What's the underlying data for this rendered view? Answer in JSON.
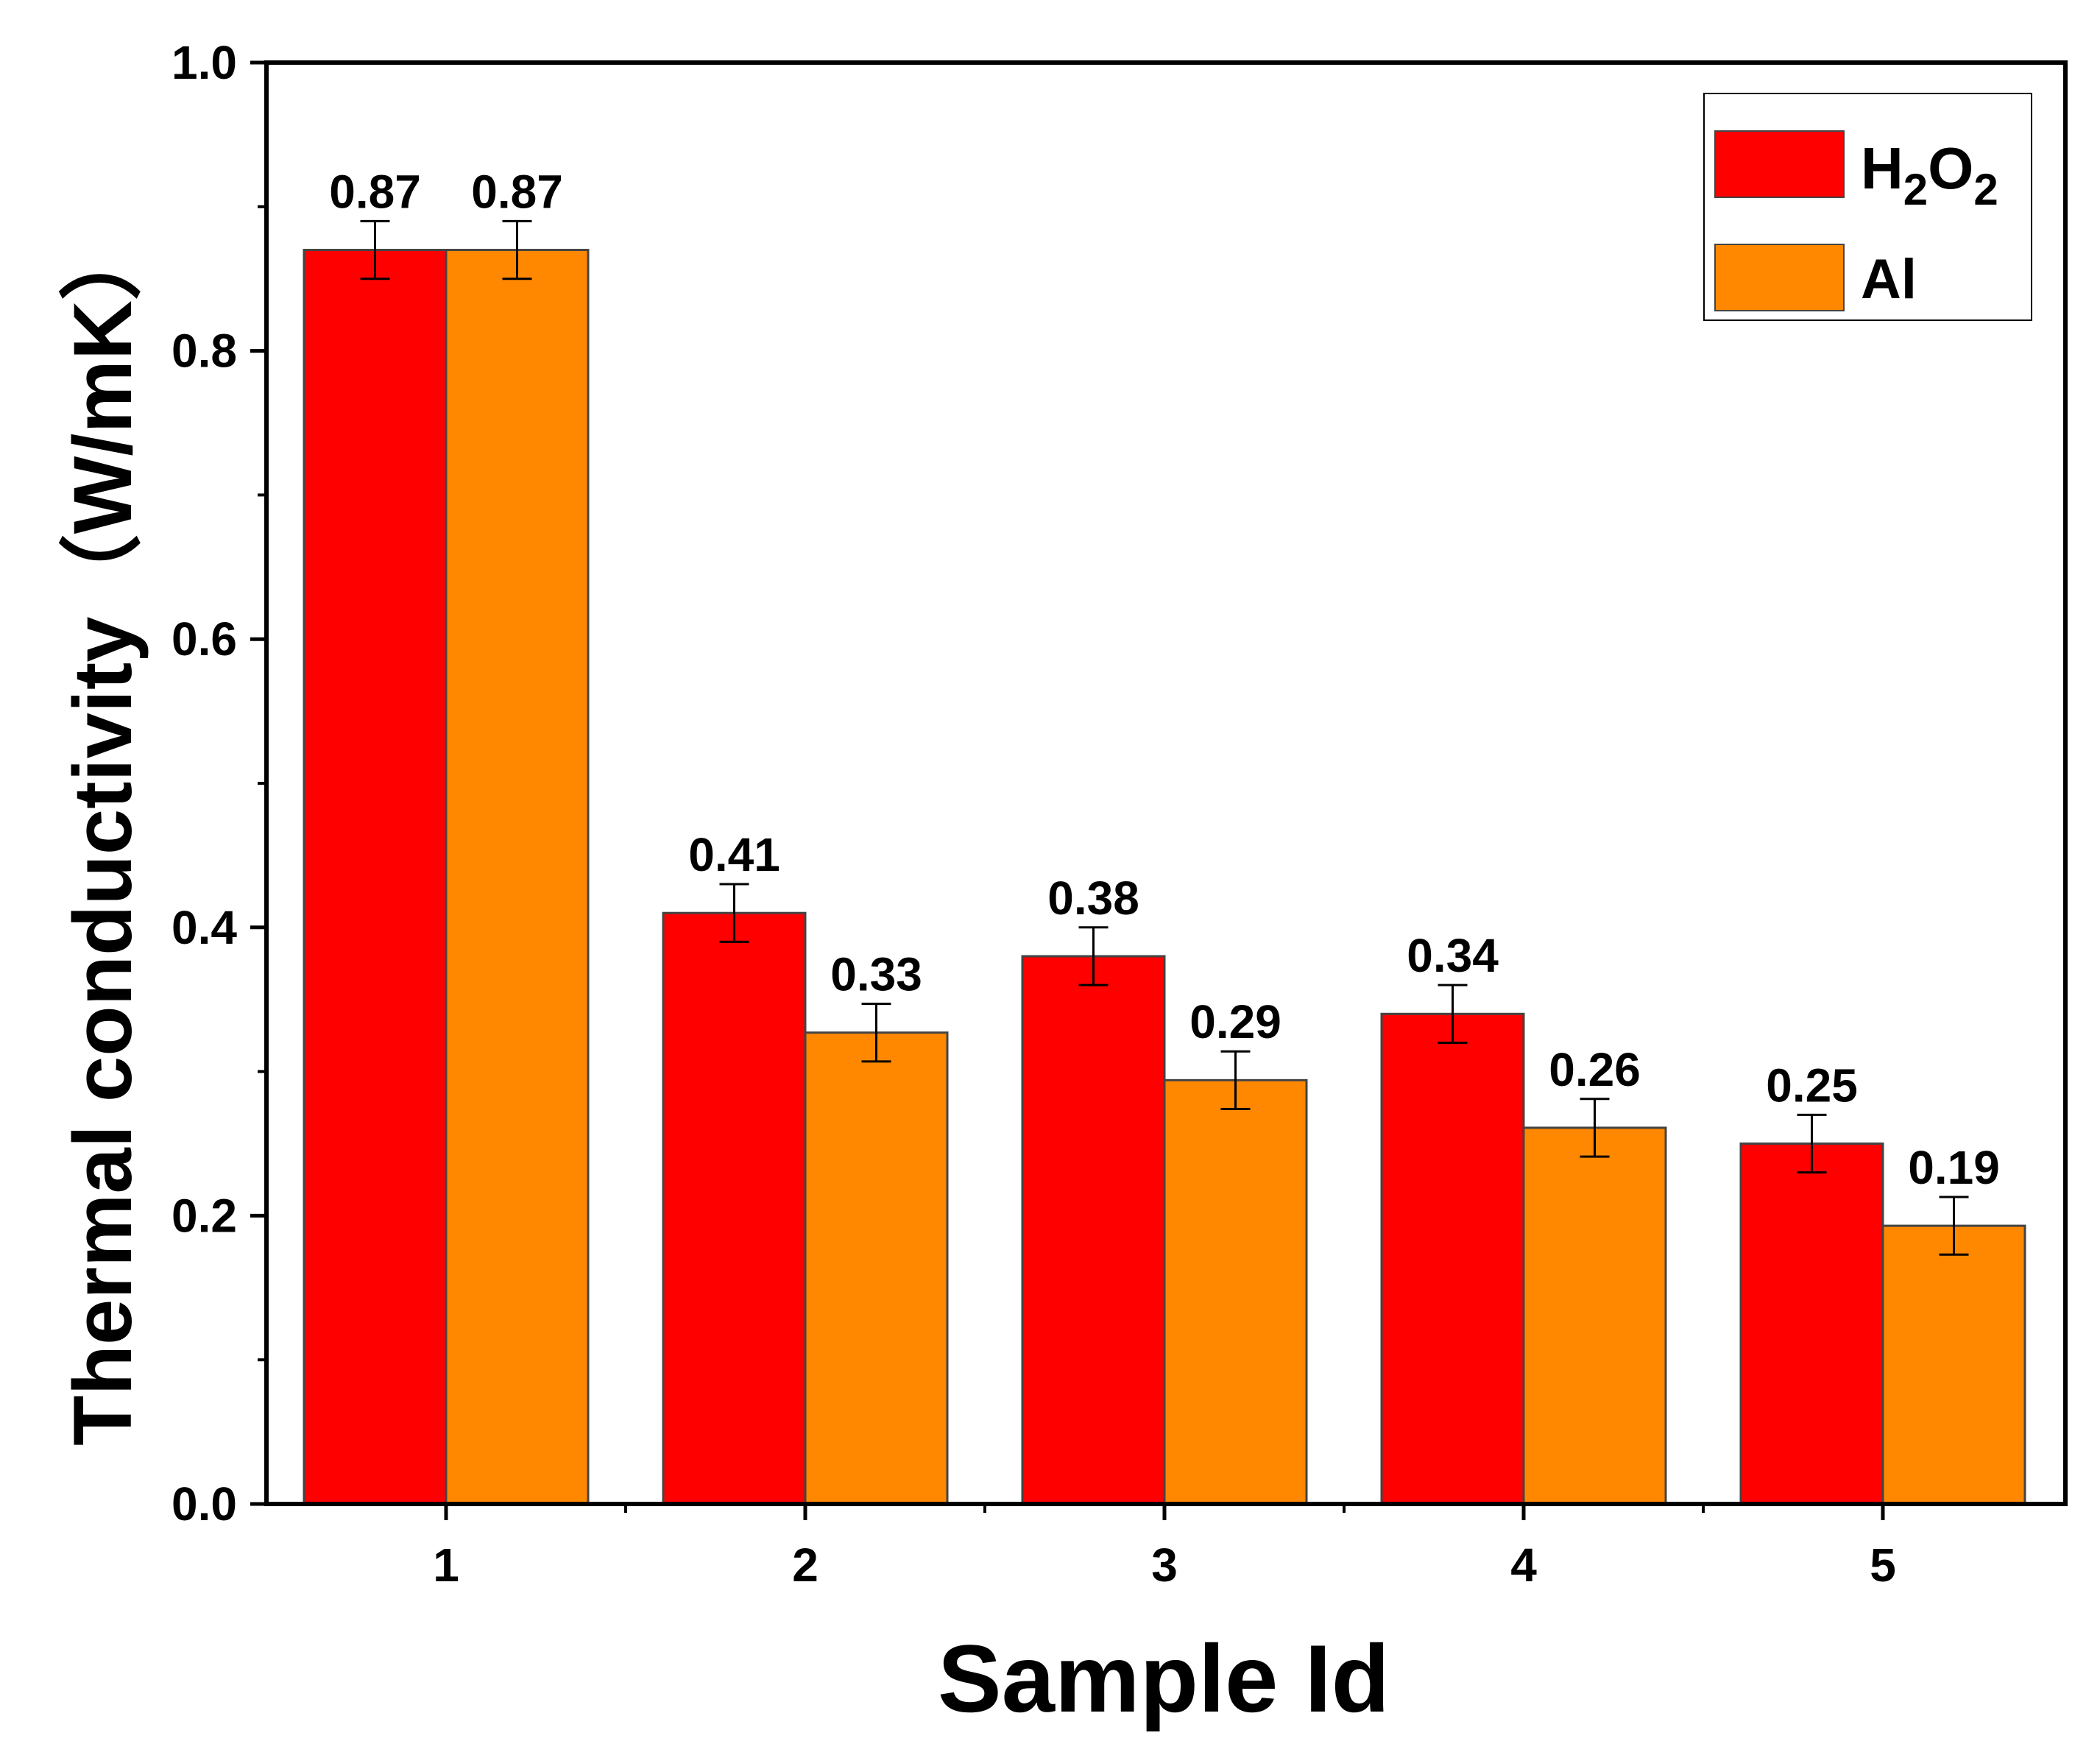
{
  "chart_data": {
    "type": "bar",
    "title": "",
    "xlabel": "Sample Id",
    "ylabel": "Thermal conductivity（W/mK）",
    "categories": [
      "1",
      "2",
      "3",
      "4",
      "5"
    ],
    "series": [
      {
        "name": "H2O2",
        "legend_label": {
          "main1": "H",
          "sub1": "2",
          "main2": "O",
          "sub2": "2"
        },
        "color": "#ff0000",
        "values": [
          0.87,
          0.41,
          0.38,
          0.34,
          0.25
        ],
        "labels": [
          "0.87",
          "0.41",
          "0.38",
          "0.34",
          "0.25"
        ],
        "errors": [
          0.02,
          0.02,
          0.02,
          0.02,
          0.02
        ]
      },
      {
        "name": "Al",
        "legend_label": {
          "main1": "Al"
        },
        "color": "#ff8800",
        "values": [
          0.87,
          0.327,
          0.294,
          0.261,
          0.193
        ],
        "labels": [
          "0.87",
          "0.33",
          "0.29",
          "0.26",
          "0.19"
        ],
        "errors": [
          0.02,
          0.02,
          0.02,
          0.02,
          0.02
        ]
      }
    ],
    "ylim": [
      0,
      1.0
    ],
    "yticks": [
      "0.0",
      "0.2",
      "0.4",
      "0.6",
      "0.8",
      "1.0"
    ],
    "grid": false,
    "legend_position": "top-right"
  }
}
